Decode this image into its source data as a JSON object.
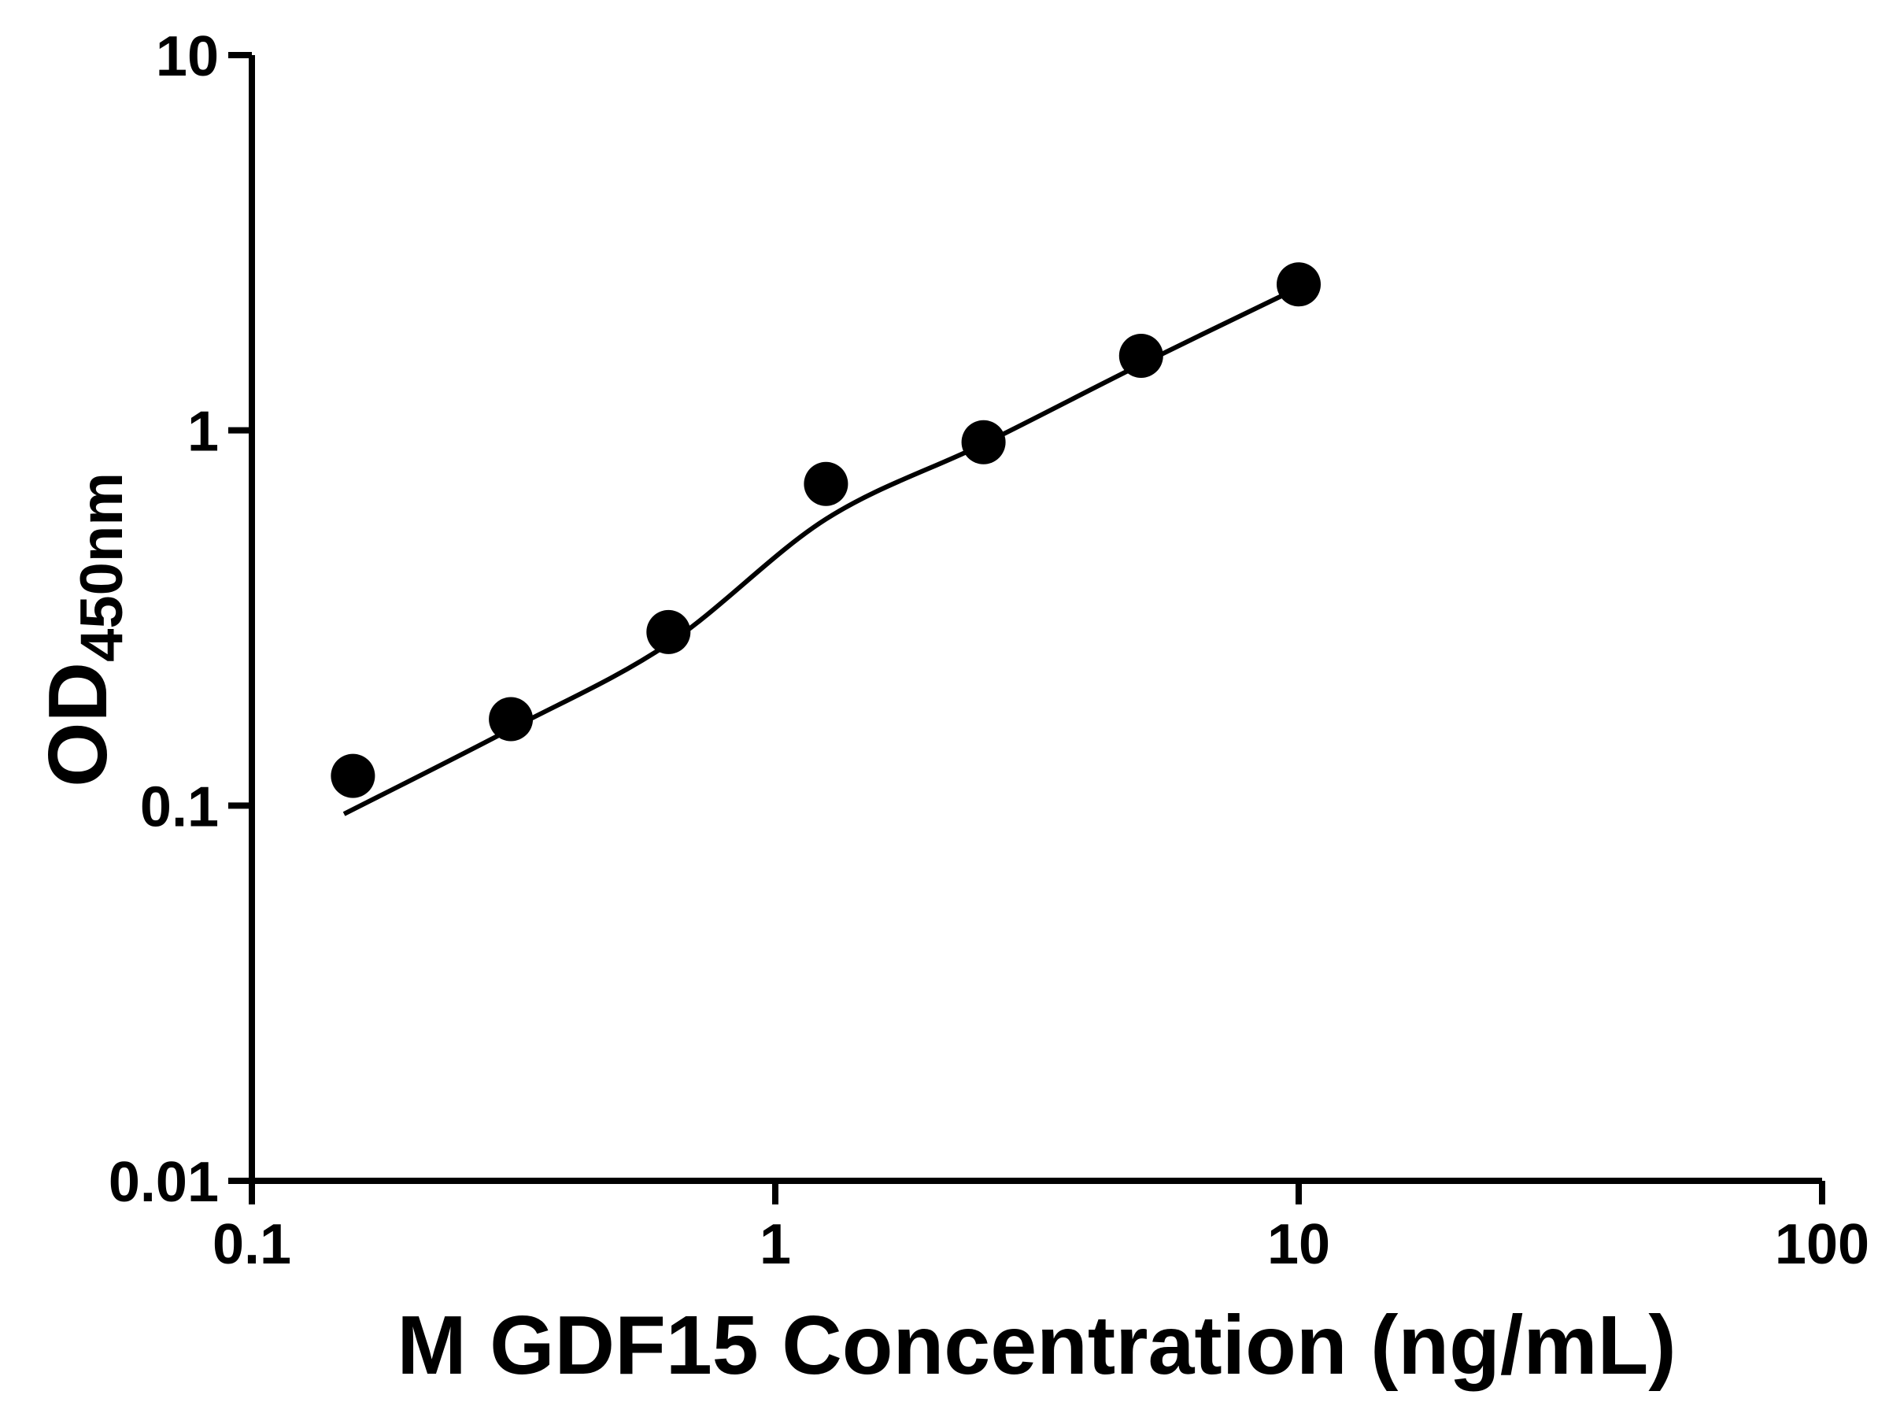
{
  "chart_data": {
    "type": "scatter",
    "title": "",
    "xlabel": "M GDF15 Concentration (ng/mL)",
    "ylabel": "OD450nm",
    "ylabel_main": "OD",
    "ylabel_sub": "450nm",
    "x_scale": "log",
    "y_scale": "log",
    "xlim": [
      0.1,
      100
    ],
    "ylim": [
      0.01,
      10
    ],
    "x_ticks": [
      0.1,
      1,
      10,
      100
    ],
    "x_tick_labels": [
      "0.1",
      "1",
      "10",
      "100"
    ],
    "y_ticks": [
      10,
      1,
      0.1,
      0.01
    ],
    "y_tick_labels": [
      "10",
      "1",
      "0.1",
      "0.01"
    ],
    "grid": false,
    "legend": "none",
    "points": [
      [
        0.156,
        0.12
      ],
      [
        0.3125,
        0.17
      ],
      [
        0.625,
        0.29
      ],
      [
        1.25,
        0.72
      ],
      [
        2.5,
        0.93
      ],
      [
        5,
        1.58
      ],
      [
        10,
        2.45
      ]
    ],
    "fit_curve": [
      [
        0.15,
        0.095
      ],
      [
        0.3125,
        0.16
      ],
      [
        0.625,
        0.27
      ],
      [
        1.25,
        0.58
      ],
      [
        2.5,
        0.92
      ],
      [
        5,
        1.5
      ],
      [
        10,
        2.4
      ]
    ],
    "marker": "circle",
    "marker_radius": 28,
    "marker_color": "#000000",
    "line_color": "#000000",
    "axis_color": "#000000",
    "background": "#ffffff"
  }
}
